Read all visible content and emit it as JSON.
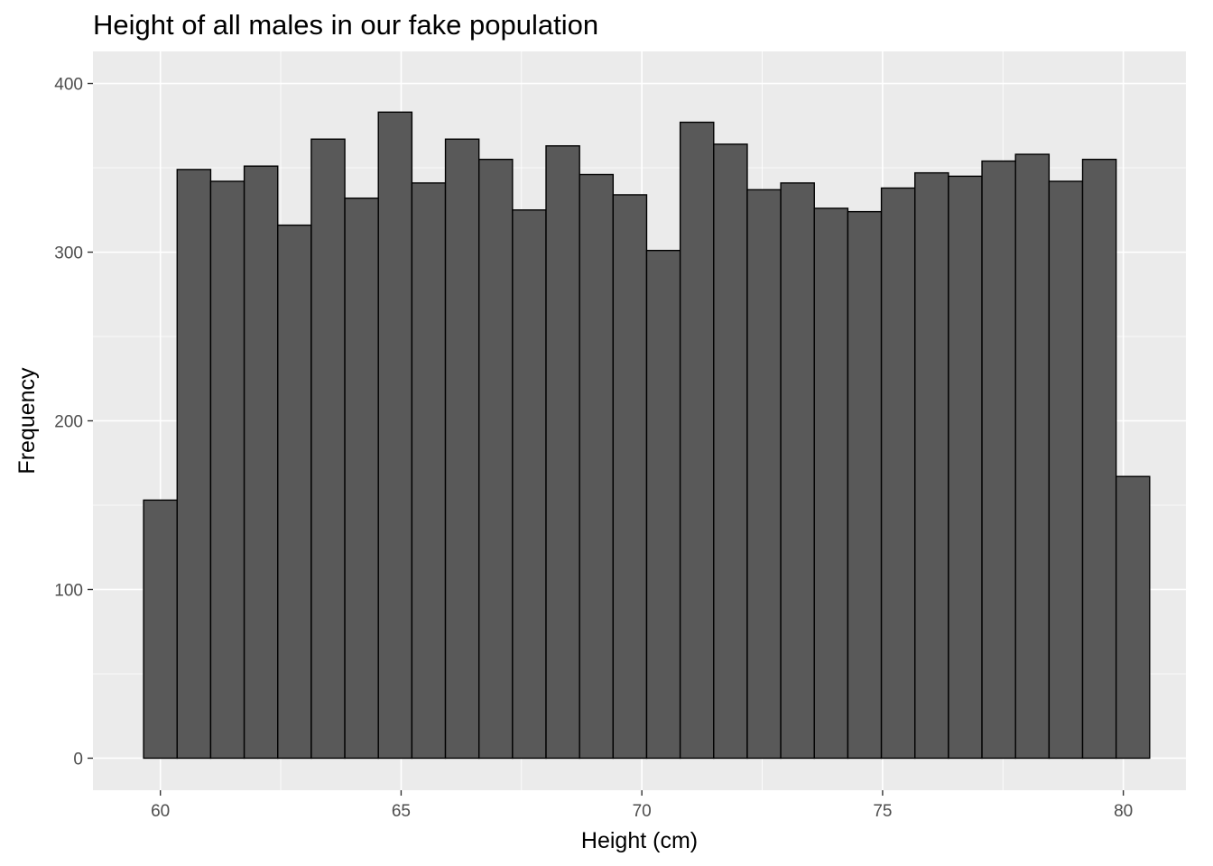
{
  "chart_data": {
    "type": "bar",
    "title": "Height of all males in our fake population",
    "xlabel": "Height (cm)",
    "ylabel": "Frequency",
    "xlim": [
      58.6,
      81.3
    ],
    "ylim": [
      -19,
      419
    ],
    "x_ticks": [
      60,
      65,
      70,
      75,
      80
    ],
    "y_ticks": [
      0,
      100,
      200,
      300,
      400
    ],
    "grid": true,
    "bin_width": 0.6965,
    "bin_start": 59.652,
    "values": [
      153,
      349,
      342,
      351,
      316,
      367,
      332,
      383,
      341,
      367,
      355,
      325,
      363,
      346,
      334,
      301,
      377,
      364,
      337,
      341,
      326,
      324,
      338,
      347,
      345,
      354,
      358,
      342,
      355,
      167
    ],
    "colors": {
      "bar_fill": "#595959",
      "bar_stroke": "#000000",
      "panel": "#ebebeb",
      "grid": "#ffffff"
    }
  }
}
